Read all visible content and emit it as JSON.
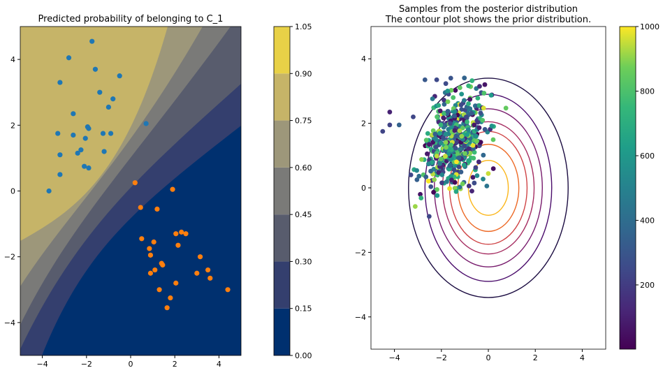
{
  "chart_data": [
    {
      "type": "filled-contour",
      "title": "Predicted probability of belonging to C_1",
      "xlim": [
        -5,
        5
      ],
      "ylim": [
        -5,
        5
      ],
      "x_ticks": [
        "−4",
        "−2",
        "0",
        "2",
        "4"
      ],
      "y_ticks": [
        "−4",
        "−2",
        "0",
        "2",
        "4"
      ],
      "colorbar": {
        "levels": [
          0.0,
          0.15,
          0.3,
          0.45,
          0.6,
          0.75,
          0.9,
          1.05
        ],
        "tick_labels": [
          "0.00",
          "0.15",
          "0.30",
          "0.45",
          "0.60",
          "0.75",
          "0.90",
          "1.05"
        ],
        "colors": [
          "#00306f",
          "#343f6e",
          "#585c6d",
          "#7a7a78",
          "#9d977a",
          "#c6b468",
          "#e8d147"
        ]
      },
      "series": [
        {
          "color": "#1f77b4",
          "points": [
            [
              -3.7,
              0.0
            ],
            [
              -3.2,
              0.5
            ],
            [
              -3.3,
              1.75
            ],
            [
              -3.2,
              1.1
            ],
            [
              -3.2,
              3.3
            ],
            [
              -2.8,
              4.05
            ],
            [
              -2.6,
              2.35
            ],
            [
              -2.6,
              1.7
            ],
            [
              -2.4,
              1.15
            ],
            [
              -2.25,
              1.25
            ],
            [
              -2.1,
              0.75
            ],
            [
              -2.05,
              1.6
            ],
            [
              -1.95,
              1.95
            ],
            [
              -1.9,
              0.7
            ],
            [
              -1.9,
              1.9
            ],
            [
              -1.75,
              4.55
            ],
            [
              -1.6,
              3.7
            ],
            [
              -1.4,
              3.0
            ],
            [
              -1.25,
              1.75
            ],
            [
              -1.2,
              1.2
            ],
            [
              -1.0,
              2.55
            ],
            [
              -0.9,
              1.75
            ],
            [
              -0.8,
              2.8
            ],
            [
              -0.5,
              3.5
            ],
            [
              0.7,
              2.05
            ]
          ]
        },
        {
          "color": "#ff7f0e",
          "points": [
            [
              0.2,
              0.25
            ],
            [
              0.45,
              -0.5
            ],
            [
              0.5,
              -1.45
            ],
            [
              0.85,
              -1.75
            ],
            [
              0.9,
              -1.95
            ],
            [
              0.9,
              -2.5
            ],
            [
              1.05,
              -1.55
            ],
            [
              1.1,
              -2.4
            ],
            [
              1.2,
              -0.55
            ],
            [
              1.3,
              -3.0
            ],
            [
              1.4,
              -2.2
            ],
            [
              1.45,
              -2.25
            ],
            [
              1.65,
              -3.55
            ],
            [
              1.8,
              -3.25
            ],
            [
              1.9,
              0.05
            ],
            [
              2.05,
              -1.3
            ],
            [
              2.05,
              -2.8
            ],
            [
              2.15,
              -1.65
            ],
            [
              2.3,
              -1.25
            ],
            [
              2.5,
              -1.3
            ],
            [
              3.0,
              -2.5
            ],
            [
              3.15,
              -2.0
            ],
            [
              3.5,
              -2.4
            ],
            [
              3.6,
              -2.65
            ],
            [
              4.4,
              -3.0
            ]
          ]
        }
      ]
    },
    {
      "type": "scatter",
      "title": "Samples from the posterior distribution",
      "subtitle": "The contour plot shows the prior distribution.",
      "xlim": [
        -5,
        5
      ],
      "ylim": [
        -5,
        5
      ],
      "x_ticks": [
        "−4",
        "−2",
        "0",
        "2",
        "4"
      ],
      "y_ticks": [
        "−4",
        "−2",
        "0",
        "2",
        "4"
      ],
      "prior_contours": {
        "center": [
          0,
          0
        ],
        "semi_axes": [
          [
            3.4,
            3.4
          ],
          [
            2.7,
            2.9
          ],
          [
            2.3,
            2.45
          ],
          [
            1.95,
            2.05
          ],
          [
            1.65,
            1.75
          ],
          [
            1.3,
            1.35
          ],
          [
            0.85,
            0.85
          ]
        ],
        "colors": [
          "#1b0c41",
          "#4a0c6b",
          "#781c6d",
          "#a52c60",
          "#cf4446",
          "#ed6925",
          "#fbb61a"
        ]
      },
      "colorbar": {
        "range": [
          1,
          1000
        ],
        "tick_labels": [
          "200",
          "400",
          "600",
          "800",
          "1000"
        ],
        "tick_values": [
          200,
          400,
          600,
          800,
          1000
        ],
        "colors": [
          "#440154",
          "#3b528b",
          "#21918c",
          "#5ec962",
          "#fde725"
        ]
      },
      "samples": {
        "count": 1000,
        "center": [
          -1.4,
          1.45
        ],
        "spread": [
          0.6,
          0.7
        ],
        "outliers": [
          [
            -4.5,
            1.75
          ],
          [
            -4.2,
            2.35
          ],
          [
            -4.2,
            1.95
          ],
          [
            -3.8,
            1.95
          ],
          [
            -3.3,
            0.4
          ],
          [
            -3.2,
            2.2
          ],
          [
            -2.9,
            -0.2
          ],
          [
            -2.7,
            3.35
          ],
          [
            -2.2,
            3.35
          ],
          [
            -1.6,
            3.4
          ],
          [
            -0.6,
            0.15
          ],
          [
            -0.7,
            -0.1
          ],
          [
            -0.3,
            2.95
          ],
          [
            -0.15,
            3.2
          ]
        ]
      }
    }
  ]
}
